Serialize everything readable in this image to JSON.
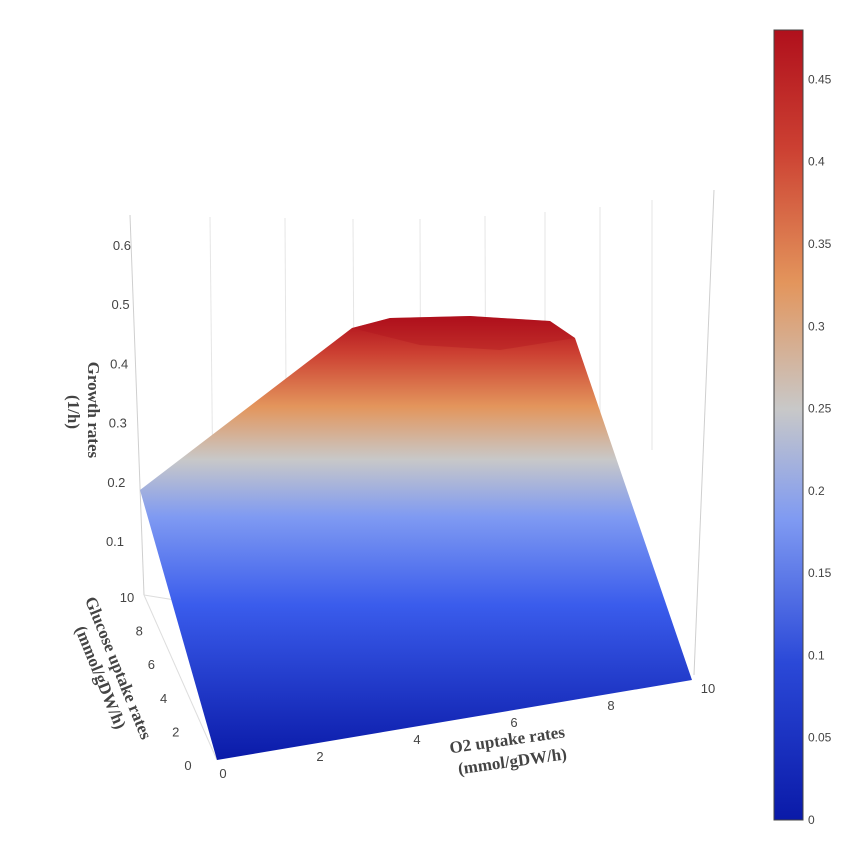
{
  "chart_data": {
    "type": "surface3d",
    "title": "",
    "x_axis": {
      "label_lines": [
        "O2 uptake rates",
        "(mmol/gDW/h)"
      ],
      "ticks": [
        "0",
        "2",
        "4",
        "6",
        "8",
        "10"
      ],
      "range": [
        0,
        10
      ]
    },
    "y_axis": {
      "label_lines": [
        "Glucose uptake rates",
        "(mmol/gDW/h)"
      ],
      "ticks": [
        "0",
        "2",
        "4",
        "6",
        "8",
        "10"
      ],
      "range": [
        0,
        10
      ]
    },
    "z_axis": {
      "label_lines": [
        "Growth rates",
        "(1/h)"
      ],
      "ticks": [
        "0.1",
        "0.2",
        "0.3",
        "0.4",
        "0.5",
        "0.6"
      ],
      "range": [
        0,
        0.65
      ]
    },
    "surface": {
      "x": [
        0,
        10
      ],
      "y": [
        0,
        10
      ],
      "corner_values": {
        "x0_y0": 0.0,
        "x10_y0": 0.0,
        "x0_y10": 0.21,
        "x10_y10": 0.47
      },
      "plateau": {
        "y": 10,
        "x_range": [
          4,
          9
        ],
        "value": 0.47
      }
    },
    "colorbar": {
      "colorscale": "RdBu_r",
      "range": [
        0,
        0.48
      ],
      "ticks": [
        "0",
        "0.05",
        "0.1",
        "0.15",
        "0.2",
        "0.25",
        "0.3",
        "0.35",
        "0.4",
        "0.45"
      ]
    },
    "colors": {
      "low": "#0a1aa8",
      "mid": "#c8c8c8",
      "high": "#b0101c"
    }
  }
}
